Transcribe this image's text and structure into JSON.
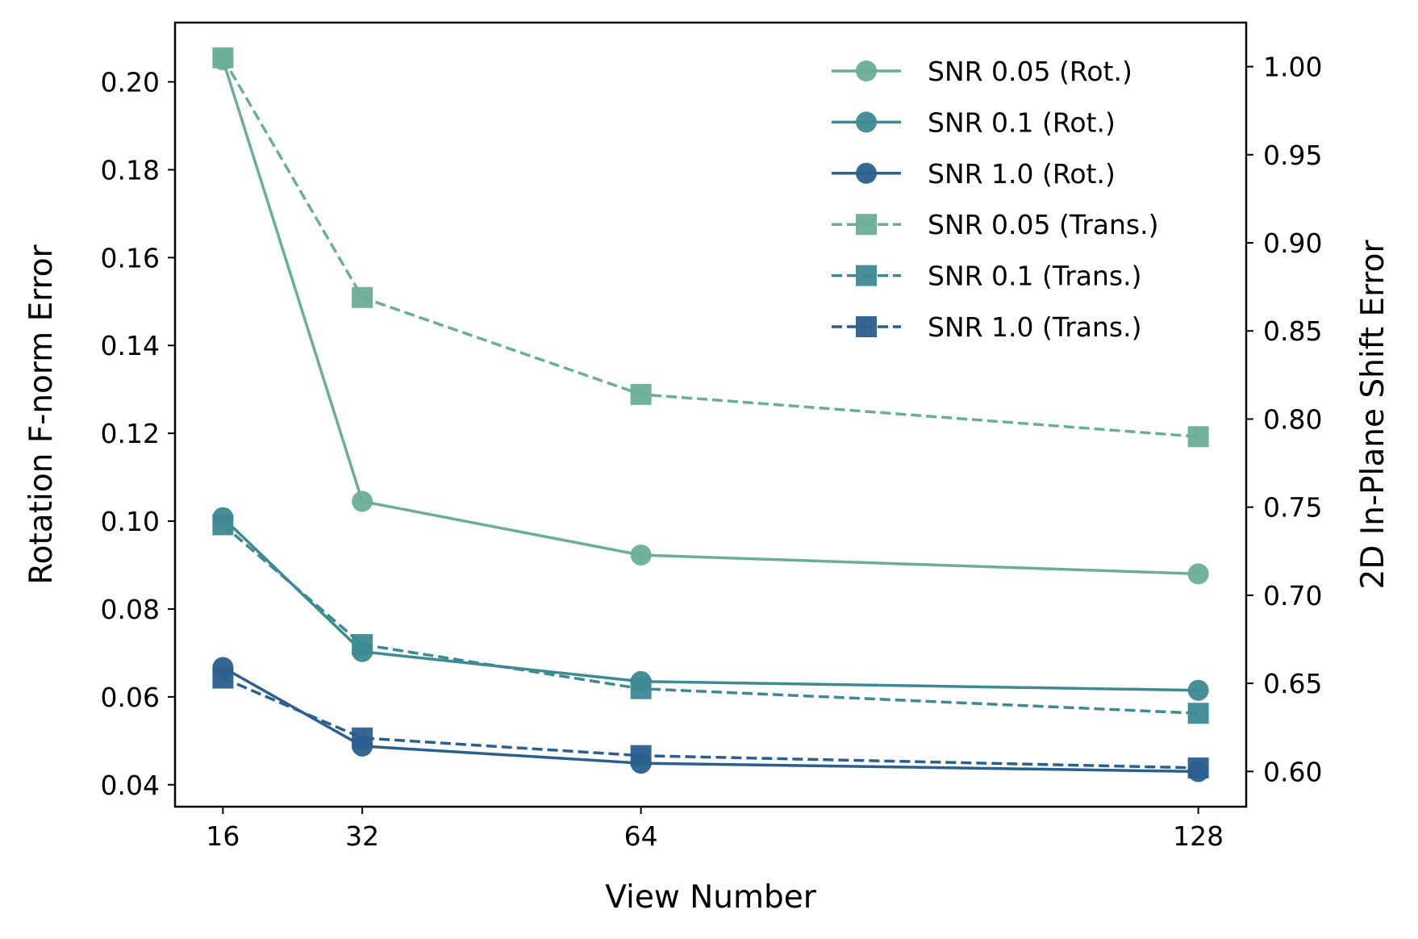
{
  "chart_data": {
    "type": "line",
    "xlabel": "View Number",
    "ylabel_left": "Rotation F-norm Error",
    "ylabel_right": "2D In-Plane Shift Error",
    "x": [
      16,
      32,
      64,
      128
    ],
    "xticks": [
      "16",
      "32",
      "64",
      "128"
    ],
    "xlim": [
      10.5,
      133.5
    ],
    "ylim_left": [
      0.035,
      0.2135
    ],
    "ylim_right": [
      0.58,
      1.025
    ],
    "yticks_left": [
      "0.04",
      "0.06",
      "0.08",
      "0.10",
      "0.12",
      "0.14",
      "0.16",
      "0.18",
      "0.20"
    ],
    "yticks_right": [
      "0.60",
      "0.65",
      "0.70",
      "0.75",
      "0.80",
      "0.85",
      "0.90",
      "0.95",
      "1.00"
    ],
    "grid": false,
    "legend_position": "top-right",
    "series": [
      {
        "name": "SNR 0.05 (Rot.)",
        "axis": "left",
        "marker": "circle",
        "dash": "solid",
        "color": "#6aae96",
        "values": [
          0.205,
          0.1045,
          0.0923,
          0.088
        ]
      },
      {
        "name": "SNR 0.1 (Rot.)",
        "axis": "left",
        "marker": "circle",
        "dash": "solid",
        "color": "#3d8a93",
        "values": [
          0.1008,
          0.0703,
          0.0635,
          0.0615
        ]
      },
      {
        "name": "SNR 1.0 (Rot.)",
        "axis": "left",
        "marker": "circle",
        "dash": "solid",
        "color": "#2b5f8e",
        "values": [
          0.0667,
          0.0488,
          0.0449,
          0.043
        ]
      },
      {
        "name": "SNR 0.05 (Trans.)",
        "axis": "right",
        "marker": "square",
        "dash": "dashed",
        "color": "#6aae96",
        "values": [
          1.005,
          0.869,
          0.814,
          0.79
        ]
      },
      {
        "name": "SNR 0.1 (Trans.)",
        "axis": "right",
        "marker": "square",
        "dash": "dashed",
        "color": "#3d8a93",
        "values": [
          0.74,
          0.672,
          0.647,
          0.633
        ]
      },
      {
        "name": "SNR 1.0 (Trans.)",
        "axis": "right",
        "marker": "square",
        "dash": "dashed",
        "color": "#2b5f8e",
        "values": [
          0.653,
          0.619,
          0.609,
          0.602
        ]
      }
    ]
  }
}
